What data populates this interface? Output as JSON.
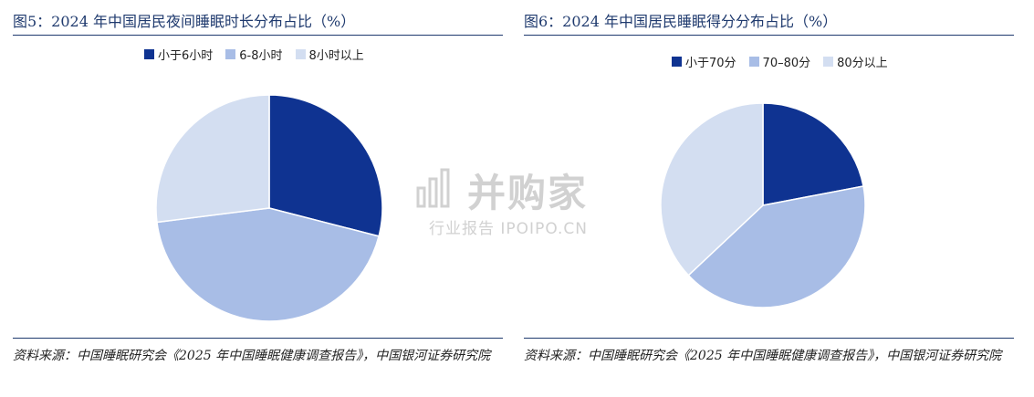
{
  "chart_data": [
    {
      "type": "pie",
      "title": "图5：2024 年中国居民夜间睡眠时长分布占比（%）",
      "categories": [
        "小于6小时",
        "6-8小时",
        "8小时以上"
      ],
      "values": [
        29,
        44,
        27
      ],
      "colors": [
        "#0f3391",
        "#a8bde6",
        "#d3def1"
      ],
      "legend_position": "top",
      "start_angle": "12 o'clock, clockwise",
      "source": "资料来源：中国睡眠研究会《2025 年中国睡眠健康调查报告》，中国银河证券研究院"
    },
    {
      "type": "pie",
      "title": "图6：2024 年中国居民睡眠得分分布占比（%）",
      "categories": [
        "小于70分",
        "70–80分",
        "80分以上"
      ],
      "values": [
        22,
        41,
        37
      ],
      "colors": [
        "#0f3391",
        "#a8bde6",
        "#d3def1"
      ],
      "legend_position": "top",
      "start_angle": "12 o'clock, clockwise",
      "source": "资料来源：中国睡眠研究会《2025 年中国睡眠健康调查报告》，中国银河证券研究院"
    }
  ],
  "watermark": {
    "main": "并购家",
    "sub": "行业报告 IPOIPO.CN"
  }
}
